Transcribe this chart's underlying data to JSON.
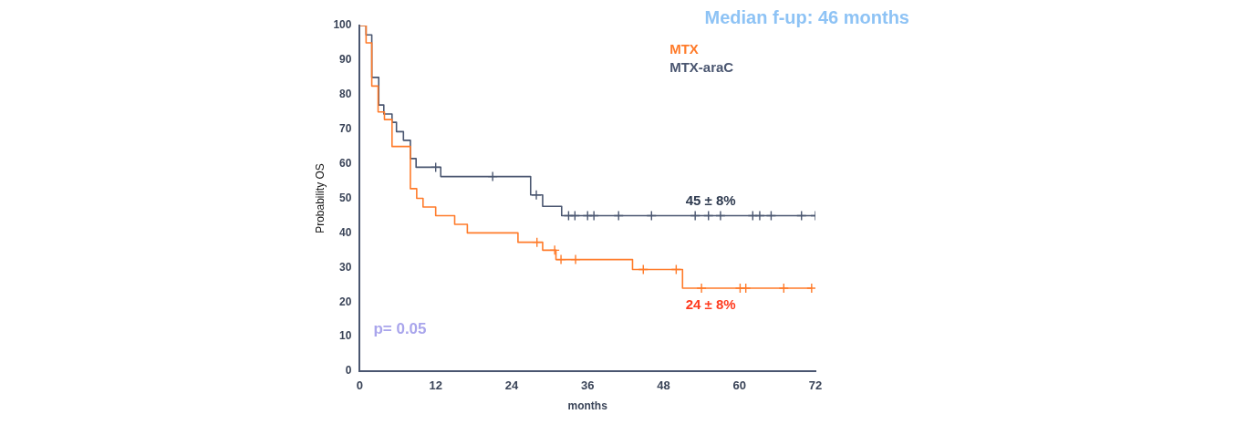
{
  "chart_data": {
    "type": "step",
    "title": "Median f-up: 46 months",
    "xlabel": "months",
    "ylabel": "Probability OS",
    "xlim": [
      0,
      72
    ],
    "xticks": [
      0,
      12,
      24,
      36,
      48,
      60,
      72
    ],
    "ylim": [
      0,
      100
    ],
    "yticks": [
      0,
      10,
      20,
      30,
      40,
      50,
      60,
      70,
      80,
      90,
      100
    ],
    "grid": false,
    "legend": "top right",
    "series": [
      {
        "name": "MTX",
        "color": "#ff7b2a",
        "x": [
          0,
          1,
          1.9,
          2.9,
          3.9,
          5.1,
          8,
          9,
          10,
          12,
          15,
          17,
          25,
          28.9,
          31,
          43.1,
          51,
          71.4
        ],
        "values": [
          100,
          95,
          82.5,
          75,
          72.8,
          65,
          52.8,
          50,
          47.5,
          45,
          42.5,
          40,
          37.3,
          35,
          32.3,
          29.4,
          24,
          24
        ]
      },
      {
        "type": "scatter",
        "marker": "cross",
        "color": "#ff7b2a",
        "x": [
          28,
          30.8,
          31.8,
          34.1,
          44.8,
          50,
          54,
          60.1,
          61,
          67,
          71.4
        ],
        "values": [
          37.3,
          35,
          32.3,
          32.3,
          29.4,
          29.4,
          24,
          24,
          24,
          24,
          24
        ]
      },
      {
        "name": "MTX-araC",
        "color": "#4a5670",
        "x": [
          0,
          1,
          1.9,
          3,
          3.8,
          5.1,
          5.8,
          6.9,
          8,
          8.9,
          12.8,
          27,
          28.9,
          31.9,
          72
        ],
        "values": [
          100,
          97.3,
          85,
          77,
          74.4,
          72,
          69.3,
          66.8,
          61.5,
          59,
          56.3,
          51,
          47.7,
          45,
          45
        ]
      },
      {
        "type": "scatter",
        "marker": "cross",
        "color": "#4a5670",
        "x": [
          12,
          21,
          27.9,
          33,
          34,
          36,
          37,
          40.9,
          46.1,
          53,
          55.1,
          57,
          62.1,
          63.2,
          65,
          69.8,
          72
        ],
        "values": [
          59,
          56.3,
          51,
          45,
          45,
          45,
          45,
          45,
          45,
          45,
          45,
          45,
          45,
          45,
          45,
          45,
          45
        ]
      }
    ],
    "annotations": [
      "45 ± 8%",
      "24 ± 8%",
      "p= 0.05"
    ]
  }
}
